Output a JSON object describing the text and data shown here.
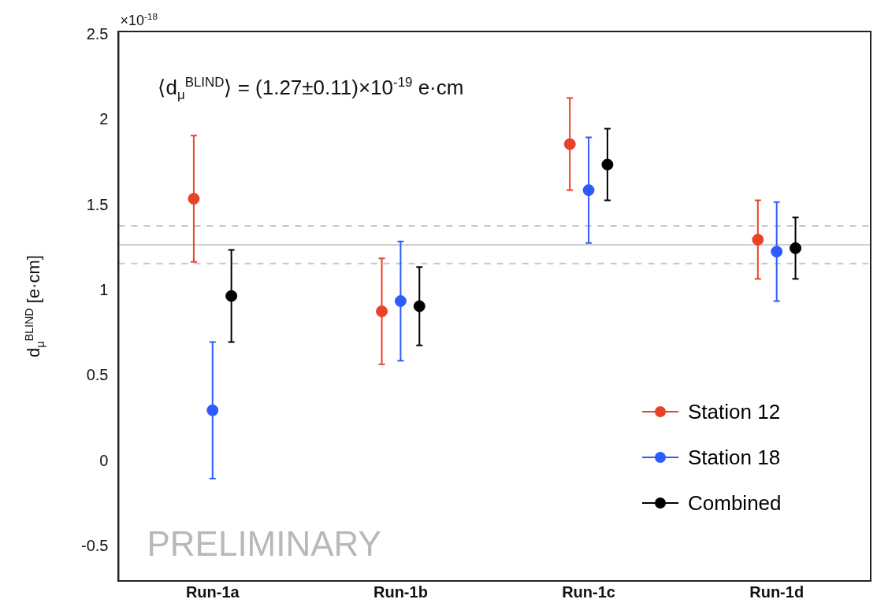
{
  "chart_data": {
    "type": "scatter",
    "categories": [
      "Run-1a",
      "Run-1b",
      "Run-1c",
      "Run-1d"
    ],
    "ylabel": "d$_{μ}$$^{BLIND}$ [e·cm]",
    "ylim": [
      -0.7,
      2.52
    ],
    "yticks": [
      -0.5,
      0,
      0.5,
      1,
      1.5,
      2,
      2.5
    ],
    "grid": false,
    "legend": "bottom right",
    "marker": "circle",
    "series": [
      {
        "name": "Station 12",
        "color": "#e8432a",
        "values": [
          1.54,
          0.88,
          1.86,
          1.3
        ],
        "errors": [
          0.37,
          0.31,
          0.27,
          0.23
        ]
      },
      {
        "name": "Station 18",
        "color": "#2e5bff",
        "values": [
          0.3,
          0.94,
          1.59,
          1.23
        ],
        "errors": [
          0.4,
          0.35,
          0.31,
          0.29
        ]
      },
      {
        "name": "Combined",
        "color": "#000000",
        "values": [
          0.97,
          0.91,
          1.74,
          1.25
        ],
        "errors": [
          0.27,
          0.23,
          0.21,
          0.18
        ]
      }
    ],
    "ref_lines": [
      {
        "axis": "y",
        "value": 1.27,
        "color": "#d0d0d0",
        "line_style": "solid"
      },
      {
        "axis": "y",
        "value": 1.38,
        "color": "#c8c8c8",
        "line_style": "dashed"
      },
      {
        "axis": "y",
        "value": 1.16,
        "color": "#c8c8c8",
        "line_style": "dashed"
      }
    ],
    "annotations": [
      "×10$^{-18}$",
      "⟨d$_{μ}$$^{BLIND}$⟩ = (1.27±0.11)×10$^{-19}$ e·cm",
      "PRELIMINARY"
    ]
  }
}
